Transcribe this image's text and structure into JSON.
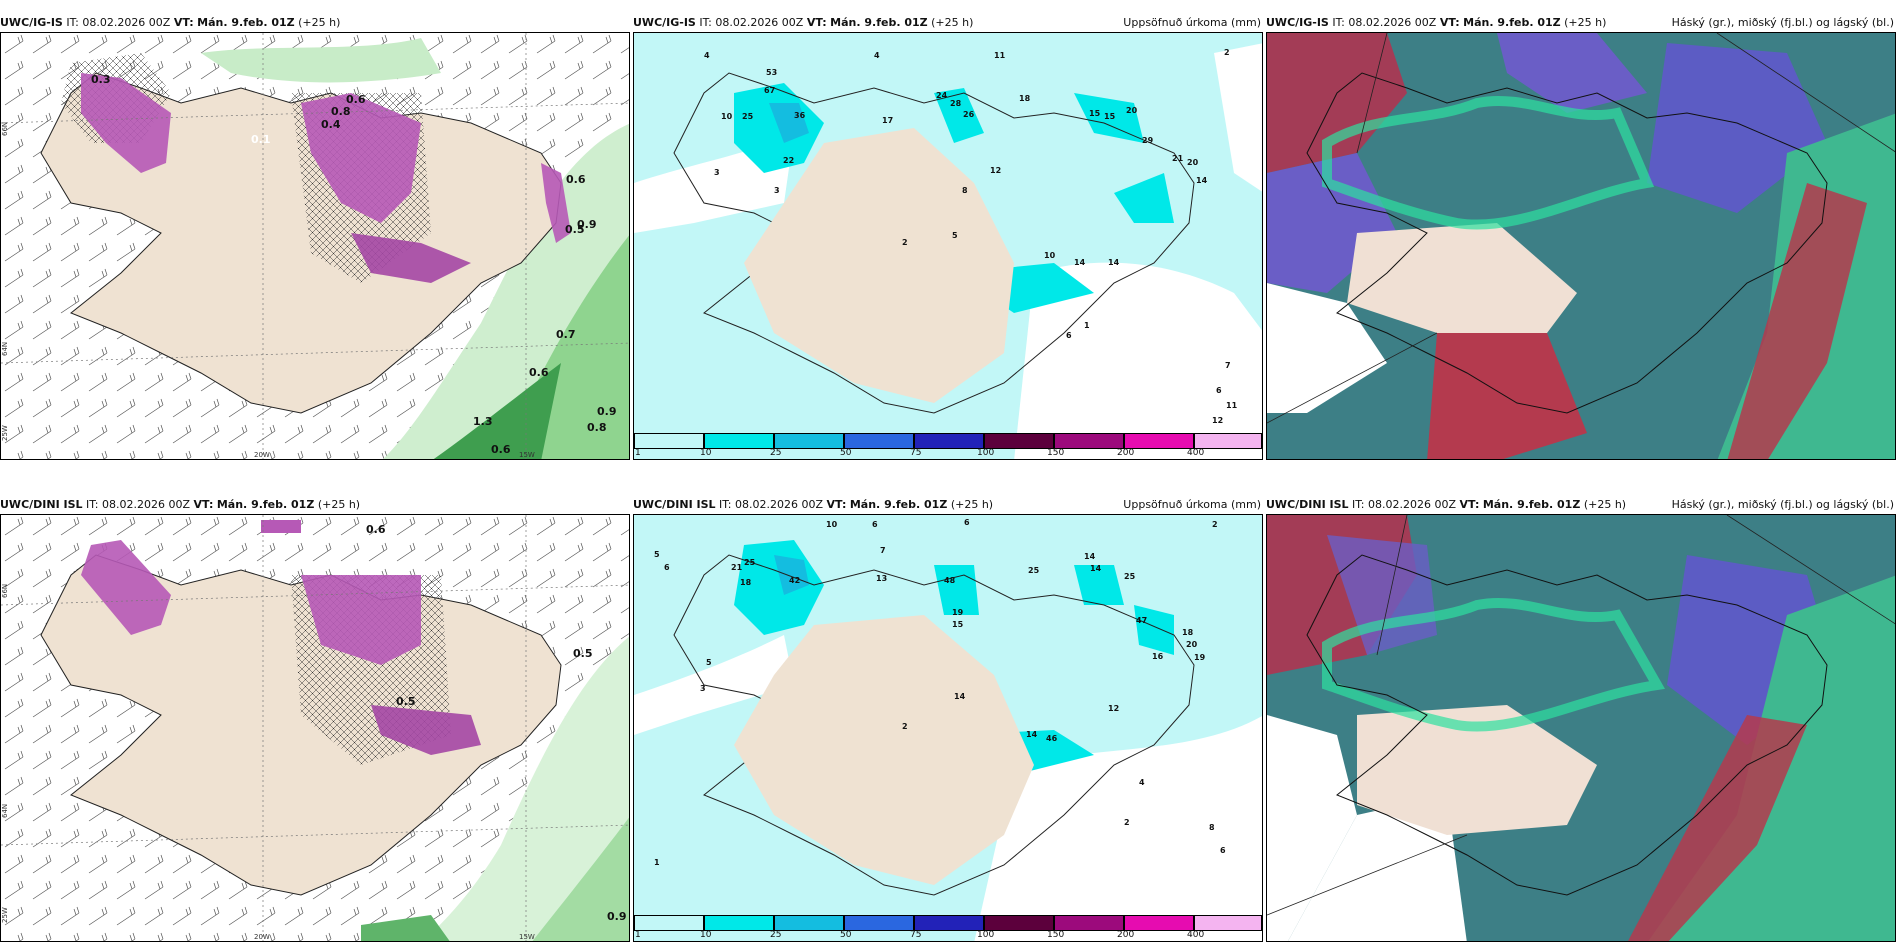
{
  "rows": [
    {
      "model": "UWC/IG-IS",
      "it_label": "IT:",
      "it_value": "08.02.2026 00Z",
      "vt_label": "VT:",
      "vt_value": "Mán. 9.feb. 01Z",
      "lead": "(+25 h)"
    },
    {
      "model": "UWC/DINI ISL",
      "it_label": "IT:",
      "it_value": "08.02.2026 00Z",
      "vt_label": "VT:",
      "vt_value": "Mán. 9.feb. 01Z",
      "lead": "(+25 h)"
    }
  ],
  "precip_title": "Uppsöfnuð úrkoma (mm)",
  "cloud_title": "Háský (gr.), miðský (fj.bl.) og lágský (bl.)",
  "lat_labels": {
    "n66": "66N",
    "n64": "64N"
  },
  "lon_labels": {
    "w25": "25W",
    "w20": "20W",
    "w15": "15W"
  },
  "colorbar": {
    "labels": [
      "1",
      "10",
      "25",
      "50",
      "75",
      "100",
      "150",
      "200",
      "400"
    ],
    "colors": [
      "#c2f7f7",
      "#00e8e8",
      "#14bde0",
      "#2a67e0",
      "#2222b8",
      "#5c003c",
      "#9c0a7c",
      "#e60cb0",
      "#f4b4f0"
    ]
  },
  "panel1_values": {
    "top": [
      "0.3",
      "0.1",
      "0.4",
      "0.8",
      "0.6",
      "0.6",
      "0.7",
      "0.6",
      "0.8",
      "0.5",
      "0.9",
      "0.9",
      "1.3",
      "0.6"
    ],
    "bottom": [
      "0.6",
      "0.5",
      "0.9",
      "0.5"
    ]
  },
  "precip_values": {
    "top": [
      "4",
      "4",
      "11",
      "3",
      "2",
      "53",
      "67",
      "25",
      "10",
      "36",
      "17",
      "24",
      "28",
      "26",
      "18",
      "15",
      "15",
      "20",
      "29",
      "22",
      "21",
      "20",
      "14",
      "3",
      "12",
      "8",
      "10",
      "14",
      "14",
      "5",
      "2",
      "6",
      "1",
      "11",
      "12",
      "7",
      "6"
    ],
    "bottom": [
      "10",
      "6",
      "6",
      "2",
      "5",
      "6",
      "25",
      "42",
      "21",
      "18",
      "7",
      "13",
      "48",
      "25",
      "14",
      "14",
      "25",
      "47",
      "18",
      "20",
      "19",
      "15",
      "19",
      "16",
      "14",
      "12",
      "14",
      "46",
      "2",
      "3",
      "5",
      "4",
      "8",
      "6",
      "2",
      "1"
    ]
  }
}
